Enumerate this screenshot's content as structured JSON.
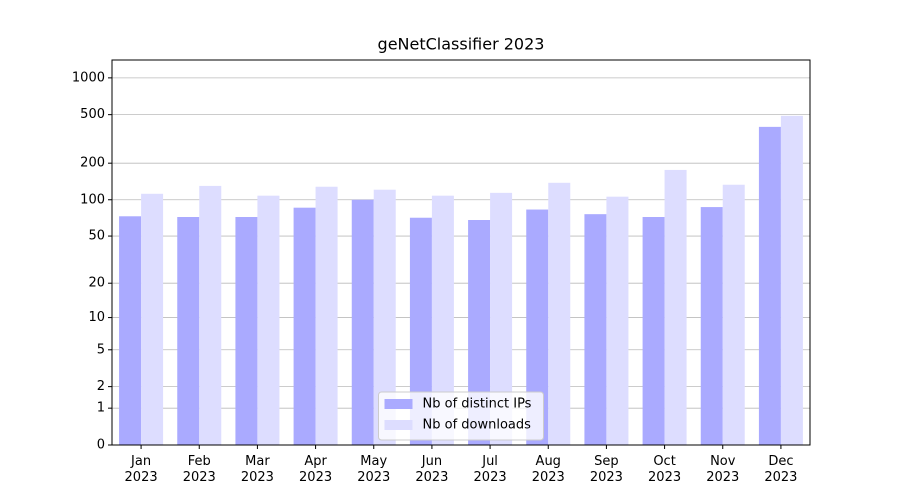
{
  "chart_data": {
    "type": "bar",
    "title": "geNetClassifier 2023",
    "categories": [
      "Jan\n2023",
      "Feb\n2023",
      "Mar\n2023",
      "Apr\n2023",
      "May\n2023",
      "Jun\n2023",
      "Jul\n2023",
      "Aug\n2023",
      "Sep\n2023",
      "Oct\n2023",
      "Nov\n2023",
      "Dec\n2023"
    ],
    "series": [
      {
        "name": "Nb of distinct IPs",
        "color": "#aaaaff",
        "values": [
          73,
          72,
          72,
          86,
          100,
          71,
          68,
          83,
          76,
          72,
          87,
          397
        ]
      },
      {
        "name": "Nb of downloads",
        "color": "#ddddff",
        "values": [
          112,
          130,
          108,
          128,
          121,
          108,
          114,
          138,
          106,
          176,
          133,
          489
        ]
      }
    ],
    "yscale": "symlog",
    "ylim": [
      0,
      1400
    ],
    "yticks": [
      0,
      1,
      2,
      5,
      10,
      20,
      50,
      100,
      200,
      500,
      1000
    ],
    "grid": true,
    "legend": "lower center"
  }
}
